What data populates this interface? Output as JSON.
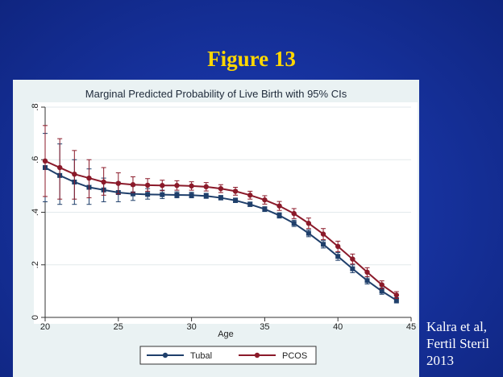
{
  "slide": {
    "title": "Figure 13",
    "citation": [
      "Kalra et al,",
      "Fertil Steril",
      "2013"
    ]
  },
  "colors": {
    "background": "#1a35a5",
    "title": "#ffd700",
    "tubal": "#1f3f6b",
    "pcos": "#8b1a2a",
    "plot_bg": "#ffffff",
    "panel_bg": "#eaf2f3"
  },
  "chart_data": {
    "type": "line",
    "title": "Marginal Predicted Probability of Live Birth with 95% CIs",
    "xlabel": "Age",
    "ylabel": "",
    "xlim": [
      20,
      45
    ],
    "ylim": [
      0,
      0.8
    ],
    "xticks": [
      20,
      25,
      30,
      35,
      40,
      45
    ],
    "xtick_labels": [
      "20",
      "25",
      "30",
      "35",
      "40",
      "45"
    ],
    "yticks": [
      0,
      0.2,
      0.4,
      0.6,
      0.8
    ],
    "ytick_labels": [
      "0",
      ".2",
      ".4",
      ".6",
      ".8"
    ],
    "grid": true,
    "legend_position": "bottom",
    "x": [
      20,
      21,
      22,
      23,
      24,
      25,
      26,
      27,
      28,
      29,
      30,
      31,
      32,
      33,
      34,
      35,
      36,
      37,
      38,
      39,
      40,
      41,
      42,
      43,
      44
    ],
    "series": [
      {
        "name": "Tubal",
        "values": [
          0.57,
          0.54,
          0.515,
          0.495,
          0.485,
          0.475,
          0.47,
          0.468,
          0.467,
          0.466,
          0.465,
          0.462,
          0.455,
          0.445,
          0.43,
          0.412,
          0.388,
          0.358,
          0.32,
          0.278,
          0.232,
          0.185,
          0.14,
          0.1,
          0.065
        ],
        "ci_low": [
          0.44,
          0.43,
          0.43,
          0.43,
          0.44,
          0.44,
          0.445,
          0.45,
          0.452,
          0.455,
          0.455,
          0.453,
          0.447,
          0.437,
          0.422,
          0.403,
          0.378,
          0.346,
          0.307,
          0.264,
          0.217,
          0.17,
          0.127,
          0.088,
          0.055
        ],
        "ci_high": [
          0.7,
          0.66,
          0.6,
          0.565,
          0.53,
          0.515,
          0.5,
          0.49,
          0.484,
          0.478,
          0.476,
          0.472,
          0.464,
          0.454,
          0.439,
          0.421,
          0.398,
          0.37,
          0.333,
          0.292,
          0.247,
          0.2,
          0.154,
          0.112,
          0.075
        ]
      },
      {
        "name": "PCOS",
        "values": [
          0.595,
          0.57,
          0.545,
          0.53,
          0.515,
          0.51,
          0.505,
          0.503,
          0.502,
          0.502,
          0.5,
          0.497,
          0.49,
          0.48,
          0.465,
          0.447,
          0.424,
          0.395,
          0.358,
          0.317,
          0.27,
          0.222,
          0.172,
          0.124,
          0.085
        ],
        "ci_low": [
          0.46,
          0.45,
          0.45,
          0.455,
          0.465,
          0.47,
          0.475,
          0.48,
          0.482,
          0.484,
          0.484,
          0.481,
          0.475,
          0.465,
          0.45,
          0.431,
          0.407,
          0.376,
          0.338,
          0.296,
          0.25,
          0.203,
          0.155,
          0.109,
          0.072
        ],
        "ci_high": [
          0.73,
          0.68,
          0.635,
          0.6,
          0.57,
          0.55,
          0.535,
          0.528,
          0.522,
          0.52,
          0.516,
          0.513,
          0.505,
          0.495,
          0.48,
          0.463,
          0.441,
          0.414,
          0.378,
          0.338,
          0.29,
          0.241,
          0.189,
          0.139,
          0.098
        ]
      }
    ]
  }
}
